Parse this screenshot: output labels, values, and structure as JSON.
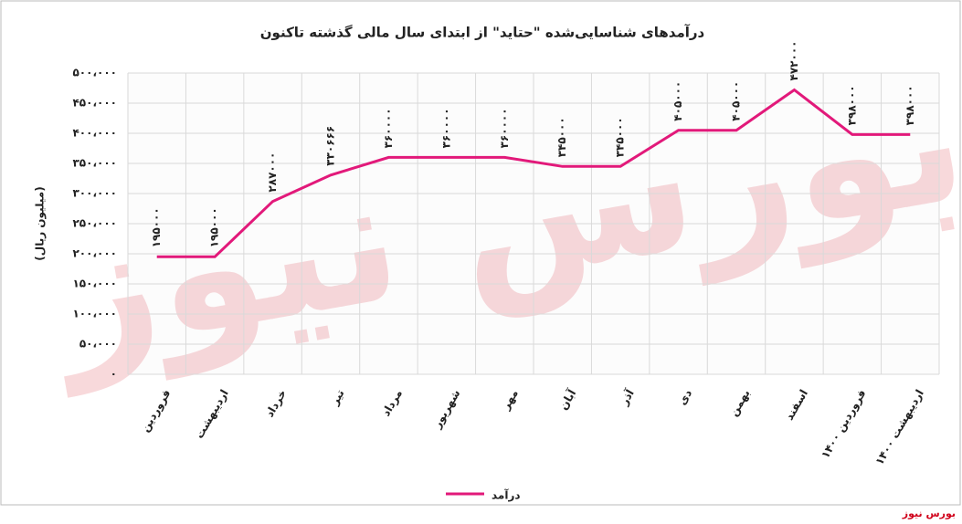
{
  "chart_data": {
    "type": "line",
    "title": "درآمدهای شناسایی‌شده \"حتاید\" از ابتدای سال مالی گذشته تاکنون",
    "y_label": "(میلیون ریال)",
    "categories": [
      "فروردین",
      "اردیبهشت",
      "خرداد",
      "تیر",
      "مرداد",
      "شهریور",
      "مهر",
      "آبان",
      "آذر",
      "دی",
      "بهمن",
      "اسفند",
      "فروردین ۱۴۰۰",
      "اردیبهشت ۱۴۰۰"
    ],
    "series": [
      {
        "name": "درآمد",
        "color": "#e2197a",
        "values": [
          195000,
          195000,
          287000,
          330666,
          360000,
          360000,
          360000,
          345000,
          345000,
          405000,
          405000,
          472000,
          398000,
          398000
        ],
        "value_labels": [
          "۱۹۵۰۰۰",
          "۱۹۵۰۰۰",
          "۲۸۷۰۰۰",
          "۳۳۰۶۶۶",
          "۳۶۰۰۰۰",
          "۳۶۰۰۰۰",
          "۳۶۰۰۰۰",
          "۳۴۵۰۰۰",
          "۳۴۵۰۰۰",
          "۴۰۵۰۰۰",
          "۴۰۵۰۰۰",
          "۴۷۲۰۰۰",
          "۳۹۸۰۰۰",
          "۳۹۸۰۰۰"
        ]
      }
    ],
    "ylim": [
      0,
      500000
    ],
    "yticks": [
      {
        "value": 0,
        "label": "۰"
      },
      {
        "value": 50000,
        "label": "۵۰،۰۰۰"
      },
      {
        "value": 100000,
        "label": "۱۰۰،۰۰۰"
      },
      {
        "value": 150000,
        "label": "۱۵۰،۰۰۰"
      },
      {
        "value": 200000,
        "label": "۲۰۰،۰۰۰"
      },
      {
        "value": 250000,
        "label": "۲۵۰،۰۰۰"
      },
      {
        "value": 300000,
        "label": "۳۰۰،۰۰۰"
      },
      {
        "value": 350000,
        "label": "۳۵۰،۰۰۰"
      },
      {
        "value": 400000,
        "label": "۴۰۰،۰۰۰"
      },
      {
        "value": 450000,
        "label": "۴۵۰،۰۰۰"
      },
      {
        "value": 500000,
        "label": "۵۰۰،۰۰۰"
      }
    ],
    "grid": true,
    "legend": "bottom",
    "watermark": "بورس نیوز",
    "source": "بورس نیوز"
  }
}
